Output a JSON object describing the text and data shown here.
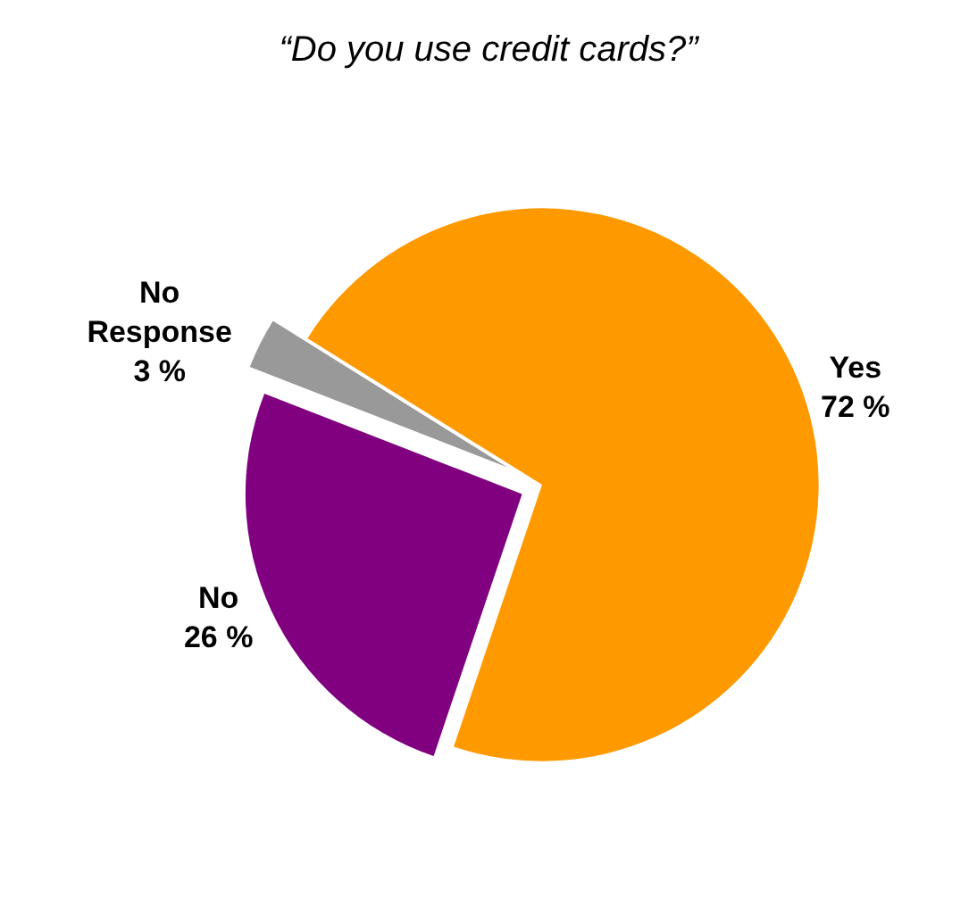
{
  "chart_data": {
    "type": "pie",
    "title": "“Do you use credit cards?”",
    "categories": [
      "Yes",
      "No",
      "No Response"
    ],
    "values": [
      72,
      26,
      3
    ],
    "value_labels": [
      "72 %",
      "26 %",
      "3 %"
    ],
    "colors": [
      "#ff9900",
      "#800080",
      "#999999"
    ],
    "legend": false
  }
}
